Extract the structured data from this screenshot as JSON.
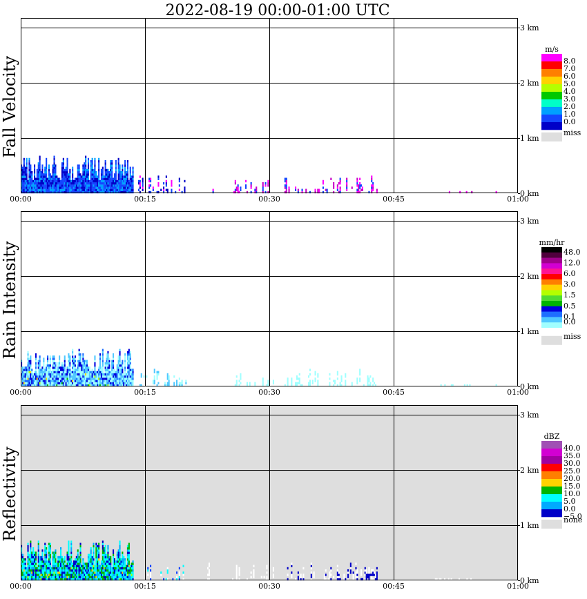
{
  "title": "2022-08-19   00:00-01:00 UTC",
  "palette": {
    "grid": "#000000",
    "missing": "#dedede",
    "plot_bg": "#ffffff"
  },
  "chart_data": [
    {
      "type": "heatmap",
      "name": "fall-velocity",
      "ylabel": "Fall Velocity",
      "x_ticks": [
        "00:00",
        "00:15",
        "00:30",
        "00:45",
        "01:00"
      ],
      "y_ticks": [
        "0 km",
        "1 km",
        "2 km",
        "3 km"
      ],
      "x_range": [
        0,
        60
      ],
      "y_range": [
        0,
        3.0
      ],
      "y_top_line": 3.0,
      "background": "plot_bg",
      "colorbar": {
        "unit": "m/s",
        "labels": [
          "8.0",
          "7.0",
          "6.0",
          "5.0",
          "4.0",
          "3.0",
          "2.0",
          "1.0",
          "0.0"
        ],
        "colors": [
          "#ff00ff",
          "#ff0000",
          "#ff7f00",
          "#ffd200",
          "#b4ff00",
          "#00c800",
          "#00ffc8",
          "#00a0ff",
          "#1446ff",
          "#0000c8"
        ],
        "missing_label": "miss",
        "missing_color": "#dedede"
      },
      "regions": [
        {
          "x0": 0.0,
          "x1": 13.5,
          "base": 0,
          "top_min": 0.25,
          "top_max": 0.7,
          "colors": [
            "#1446ff",
            "#0000c8",
            "#00a0ff",
            "#1446ff"
          ],
          "mode": "columns"
        },
        {
          "x0": 14.0,
          "x1": 20.0,
          "base": 0,
          "top_min": 0.03,
          "top_max": 0.35,
          "colors": [
            "#1446ff",
            "#0000c8",
            "#ff00ff"
          ],
          "mode": "sparse"
        },
        {
          "x0": 22.5,
          "x1": 23.2,
          "base": 0,
          "top_min": 0.05,
          "top_max": 0.4,
          "colors": [
            "#1446ff",
            "#ff00ff"
          ],
          "mode": "sparse"
        },
        {
          "x0": 25.5,
          "x1": 30.5,
          "base": 0,
          "top_min": 0.02,
          "top_max": 0.3,
          "colors": [
            "#ff00ff",
            "#1446ff",
            "#c800c8"
          ],
          "mode": "sparse"
        },
        {
          "x0": 31.5,
          "x1": 43.0,
          "base": 0,
          "top_min": 0.02,
          "top_max": 0.35,
          "colors": [
            "#ff00ff",
            "#1446ff",
            "#c800c8"
          ],
          "mode": "sparse"
        },
        {
          "x0": 51.5,
          "x1": 55.0,
          "base": 0,
          "top_min": 0.02,
          "top_max": 0.06,
          "colors": [
            "#ff00ff",
            "#c800c8"
          ],
          "mode": "sparse"
        },
        {
          "x0": 57.3,
          "x1": 57.6,
          "base": 0,
          "top_min": 0.02,
          "top_max": 0.08,
          "colors": [
            "#ff00ff"
          ],
          "mode": "sparse"
        }
      ]
    },
    {
      "type": "heatmap",
      "name": "rain-intensity",
      "ylabel": "Rain Intensity",
      "x_ticks": [
        "00:00",
        "00:15",
        "00:30",
        "00:45",
        "01:00"
      ],
      "y_ticks": [
        "0 km",
        "1 km",
        "2 km",
        "3 km"
      ],
      "x_range": [
        0,
        60
      ],
      "y_range": [
        0,
        3.0
      ],
      "y_top_line": 3.0,
      "background": "plot_bg",
      "colorbar": {
        "unit": "mm/hr",
        "labels": [
          "48.0",
          "12.0",
          "6.0",
          "3.0",
          "1.5",
          "0.5",
          "0.1",
          "0.0"
        ],
        "label_steps": [
          0,
          2,
          4,
          6,
          8,
          10,
          12,
          13
        ],
        "colors": [
          "#000000",
          "#50003c",
          "#a0008c",
          "#d200d2",
          "#ff1493",
          "#ff0000",
          "#ff7f00",
          "#ffd200",
          "#b4ff00",
          "#50dc32",
          "#00b400",
          "#0000dc",
          "#1e6eff",
          "#50c8ff",
          "#a0ffff",
          "#ffffff"
        ],
        "missing_label": "miss",
        "missing_color": "#dedede"
      },
      "regions": [
        {
          "x0": 0.0,
          "x1": 13.5,
          "base": 0,
          "top_min": 0.25,
          "top_max": 0.7,
          "colors": [
            "#a0ffff",
            "#50c8ff",
            "#1e6eff",
            "#0000dc",
            "#a0ffff",
            "#50c8ff"
          ],
          "mode": "columns",
          "hot": [
            "#b4ff00",
            "#ffd200",
            "#00b400"
          ]
        },
        {
          "x0": 14.0,
          "x1": 20.0,
          "base": 0,
          "top_min": 0.03,
          "top_max": 0.35,
          "colors": [
            "#a0ffff",
            "#50c8ff"
          ],
          "mode": "sparse"
        },
        {
          "x0": 22.5,
          "x1": 23.2,
          "base": 0,
          "top_min": 0.05,
          "top_max": 0.4,
          "colors": [
            "#a0ffff"
          ],
          "mode": "sparse"
        },
        {
          "x0": 25.5,
          "x1": 30.5,
          "base": 0,
          "top_min": 0.02,
          "top_max": 0.3,
          "colors": [
            "#a0ffff"
          ],
          "mode": "sparse"
        },
        {
          "x0": 31.5,
          "x1": 43.0,
          "base": 0,
          "top_min": 0.02,
          "top_max": 0.35,
          "colors": [
            "#a0ffff"
          ],
          "mode": "sparse"
        },
        {
          "x0": 50.0,
          "x1": 55.0,
          "base": 0,
          "top_min": 0.02,
          "top_max": 0.08,
          "colors": [
            "#a0ffff"
          ],
          "mode": "sparse"
        },
        {
          "x0": 57.3,
          "x1": 57.6,
          "base": 0,
          "top_min": 0.02,
          "top_max": 0.08,
          "colors": [
            "#a0ffff"
          ],
          "mode": "sparse"
        }
      ]
    },
    {
      "type": "heatmap",
      "name": "reflectivity",
      "ylabel": "Reflectivity",
      "x_ticks": [
        "00:00",
        "00:15",
        "00:30",
        "00:45",
        "01:00"
      ],
      "y_ticks": [
        "0 km",
        "1 km",
        "2 km",
        "3 km"
      ],
      "x_range": [
        0,
        60
      ],
      "y_range": [
        0,
        3.0
      ],
      "y_top_line": 3.0,
      "background": "missing",
      "colorbar": {
        "unit": "dBZ",
        "labels": [
          "40.0",
          "35.0",
          "30.0",
          "25.0",
          "20.0",
          "15.0",
          "10.0",
          "5.0",
          "0.0",
          "−5.0"
        ],
        "colors": [
          "#a050b4",
          "#d200d2",
          "#a000a0",
          "#ff0000",
          "#ff7f00",
          "#ffd200",
          "#00b400",
          "#00ffff",
          "#00aaff",
          "#0000c8"
        ],
        "missing_label": "none",
        "missing_color": "#dedede"
      },
      "regions": [
        {
          "x0": 0.0,
          "x1": 13.5,
          "base": 0,
          "top_min": 0.25,
          "top_max": 0.75,
          "colors": [
            "#00ffff",
            "#00aaff",
            "#0000c8",
            "#00ffff",
            "#00b400"
          ],
          "mode": "columns",
          "hot": [
            "#ffd200",
            "#b4ff00",
            "#00b400"
          ]
        },
        {
          "x0": 14.0,
          "x1": 20.0,
          "base": 0,
          "top_min": 0.03,
          "top_max": 0.35,
          "colors": [
            "#ffffff",
            "#1446ff",
            "#00ffff"
          ],
          "mode": "sparse"
        },
        {
          "x0": 22.5,
          "x1": 23.2,
          "base": 0,
          "top_min": 0.05,
          "top_max": 0.4,
          "colors": [
            "#ffffff"
          ],
          "mode": "sparse"
        },
        {
          "x0": 25.5,
          "x1": 30.5,
          "base": 0,
          "top_min": 0.02,
          "top_max": 0.3,
          "colors": [
            "#ffffff"
          ],
          "mode": "sparse"
        },
        {
          "x0": 31.5,
          "x1": 43.0,
          "base": 0,
          "top_min": 0.02,
          "top_max": 0.35,
          "colors": [
            "#ffffff",
            "#0000c8"
          ],
          "mode": "sparse"
        },
        {
          "x0": 49.5,
          "x1": 55.5,
          "base": 0,
          "top_min": 0.02,
          "top_max": 0.08,
          "colors": [
            "#ffffff"
          ],
          "mode": "sparse"
        },
        {
          "x0": 57.0,
          "x1": 58.0,
          "base": 0,
          "top_min": 0.02,
          "top_max": 0.08,
          "colors": [
            "#ffffff"
          ],
          "mode": "sparse"
        }
      ]
    }
  ]
}
